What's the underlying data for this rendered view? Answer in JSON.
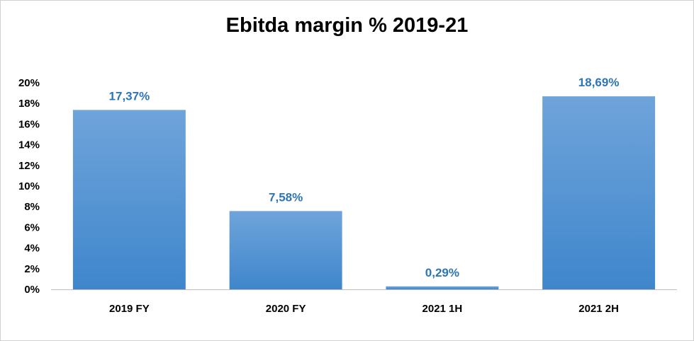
{
  "chart_data": {
    "type": "bar",
    "title": "Ebitda margin % 2019-21",
    "categories": [
      "2019 FY",
      "2020 FY",
      "2021 1H",
      "2021 2H"
    ],
    "values": [
      17.37,
      7.58,
      0.29,
      18.69
    ],
    "data_labels": [
      "17,37%",
      "7,58%",
      "0,29%",
      "18,69%"
    ],
    "yticks": [
      "0%",
      "2%",
      "4%",
      "6%",
      "8%",
      "10%",
      "12%",
      "14%",
      "16%",
      "18%",
      "20%"
    ],
    "ylim": [
      0,
      20
    ],
    "xlabel": "",
    "ylabel": "",
    "grid": false,
    "legend": "none",
    "colors": {
      "bar_top": "#6fa4da",
      "bar_bottom": "#3f86cc",
      "label": "#2e75b6",
      "axis": "#bfbfbf"
    }
  }
}
